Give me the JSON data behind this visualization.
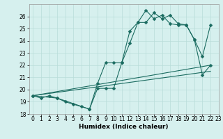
{
  "xlabel": "Humidex (Indice chaleur)",
  "ylabel": "",
  "bg_color": "#d6f0ee",
  "grid_color": "#b8ddd9",
  "line_color": "#1a6b60",
  "xlim": [
    -0.5,
    23
  ],
  "ylim": [
    18,
    27
  ],
  "xticks": [
    0,
    1,
    2,
    3,
    4,
    5,
    6,
    7,
    8,
    9,
    10,
    11,
    12,
    13,
    14,
    15,
    16,
    17,
    18,
    19,
    20,
    21,
    22,
    23
  ],
  "yticks": [
    18,
    19,
    20,
    21,
    22,
    23,
    24,
    25,
    26
  ],
  "series": [
    {
      "x": [
        0,
        1,
        2,
        3,
        4,
        5,
        6,
        7,
        8,
        9,
        10,
        11,
        12,
        13,
        14,
        15,
        16,
        17,
        18,
        19,
        20,
        21,
        22
      ],
      "y": [
        19.5,
        19.3,
        19.5,
        19.3,
        19.0,
        18.8,
        18.6,
        18.4,
        20.1,
        20.1,
        20.1,
        22.2,
        24.8,
        25.5,
        25.5,
        26.3,
        25.8,
        26.1,
        25.4,
        25.3,
        24.1,
        22.7,
        25.3
      ],
      "has_marker": true
    },
    {
      "x": [
        0,
        3,
        7,
        8,
        9,
        10,
        11,
        12,
        13,
        14,
        15,
        16,
        17,
        18,
        19,
        20,
        21,
        22
      ],
      "y": [
        19.5,
        19.3,
        18.4,
        20.5,
        22.2,
        22.2,
        22.2,
        23.8,
        25.5,
        26.5,
        25.8,
        26.1,
        25.4,
        25.3,
        25.3,
        24.1,
        21.2,
        22.0
      ],
      "has_marker": true
    },
    {
      "x": [
        0,
        22
      ],
      "y": [
        19.5,
        22.0
      ],
      "has_marker": false
    },
    {
      "x": [
        0,
        22
      ],
      "y": [
        19.5,
        21.5
      ],
      "has_marker": false
    }
  ],
  "marker": "D",
  "markersize": 2.5,
  "linewidth": 0.8,
  "tick_fontsize": 5.5,
  "xlabel_fontsize": 6.5,
  "xlabel_fontweight": "bold"
}
